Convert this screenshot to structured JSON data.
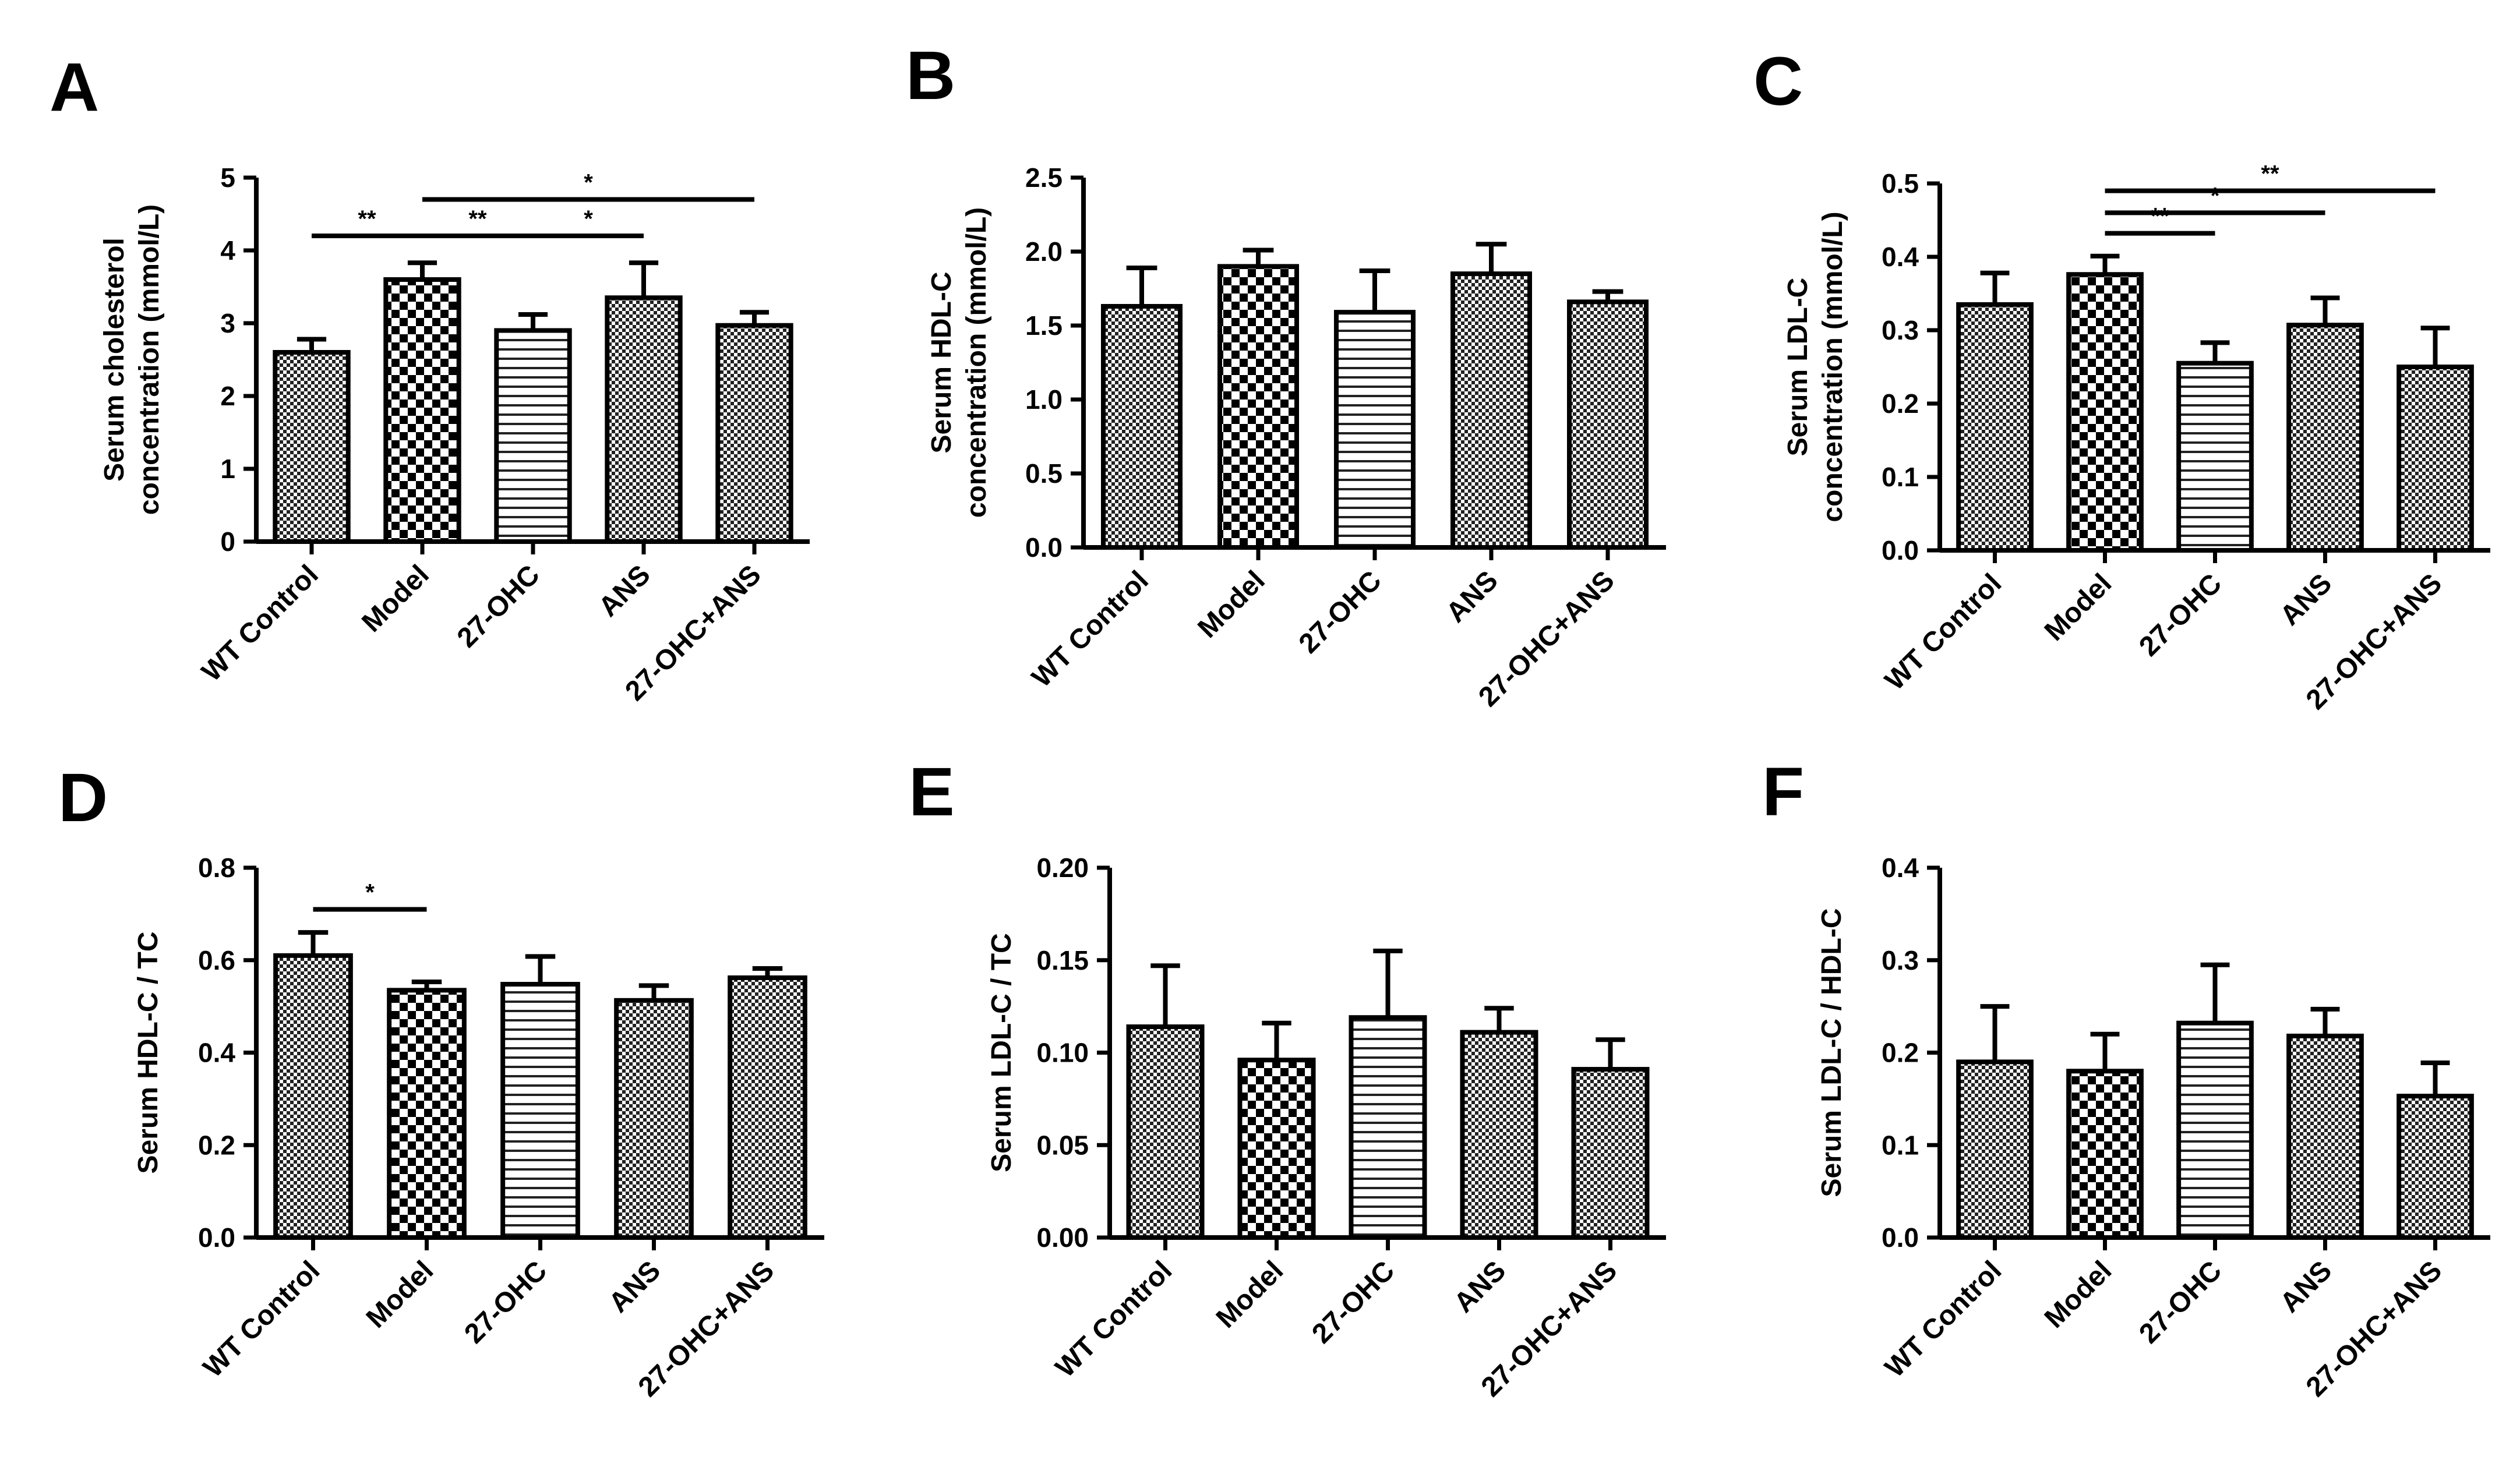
{
  "figure": {
    "background": "#ffffff",
    "ink": "#000000"
  },
  "chart_data": [
    {
      "panel": "A",
      "type": "bar",
      "ylabel": [
        "Serum cholesterol",
        "concentration (mmol/L)"
      ],
      "categories": [
        "WT Control",
        "Model",
        "27-OHC",
        "ANS",
        "27-OHC+ANS"
      ],
      "patterns": [
        "dense",
        "checker",
        "hlines",
        "dense",
        "dense"
      ],
      "values": [
        2.6,
        3.6,
        2.9,
        3.35,
        2.97
      ],
      "errors": [
        0.18,
        0.23,
        0.22,
        0.48,
        0.18
      ],
      "ylim": [
        0,
        5
      ],
      "yticks": [
        0,
        1,
        2,
        3,
        4,
        5
      ],
      "tick_labels": [
        "0",
        "1",
        "2",
        "3",
        "4",
        "5"
      ],
      "significance": [
        {
          "from": 0,
          "to": 1,
          "label": "**",
          "y": 4.2
        },
        {
          "from": 1,
          "to": 2,
          "label": "**",
          "y": 4.2
        },
        {
          "from": 2,
          "to": 3,
          "label": "*",
          "y": 4.2
        },
        {
          "from": 1,
          "to": 4,
          "label": "*",
          "y": 4.7
        }
      ]
    },
    {
      "panel": "B",
      "type": "bar",
      "ylabel": [
        "Serum HDL-C",
        "concentration (mmol/L)"
      ],
      "categories": [
        "WT Control",
        "Model",
        "27-OHC",
        "ANS",
        "27-OHC+ANS"
      ],
      "patterns": [
        "dense",
        "checker",
        "hlines",
        "dense",
        "dense"
      ],
      "values": [
        1.63,
        1.9,
        1.59,
        1.85,
        1.66
      ],
      "errors": [
        0.26,
        0.11,
        0.28,
        0.2,
        0.07
      ],
      "ylim": [
        0,
        2.5
      ],
      "yticks": [
        0,
        0.5,
        1.0,
        1.5,
        2.0,
        2.5
      ],
      "tick_labels": [
        "0.0",
        "0.5",
        "1.0",
        "1.5",
        "2.0",
        "2.5"
      ],
      "significance": []
    },
    {
      "panel": "C",
      "type": "bar",
      "ylabel": [
        "Serum LDL-C",
        "concentration (mmol/L)"
      ],
      "categories": [
        "WT Control",
        "Model",
        "27-OHC",
        "ANS",
        "27-OHC+ANS"
      ],
      "patterns": [
        "dense",
        "checker",
        "hlines",
        "dense",
        "dense"
      ],
      "values": [
        0.335,
        0.376,
        0.255,
        0.307,
        0.25
      ],
      "errors": [
        0.043,
        0.025,
        0.028,
        0.037,
        0.053
      ],
      "ylim": [
        0,
        0.5
      ],
      "yticks": [
        0,
        0.1,
        0.2,
        0.3,
        0.4,
        0.5
      ],
      "tick_labels": [
        "0.0",
        "0.1",
        "0.2",
        "0.3",
        "0.4",
        "0.5"
      ],
      "significance": [
        {
          "from": 1,
          "to": 2,
          "label": "**",
          "y": 0.432
        },
        {
          "from": 1,
          "to": 3,
          "label": "*",
          "y": 0.46
        },
        {
          "from": 1,
          "to": 4,
          "label": "**",
          "y": 0.49
        }
      ]
    },
    {
      "panel": "D",
      "type": "bar",
      "ylabel": [
        "Serum HDL-C / TC"
      ],
      "categories": [
        "WT Control",
        "Model",
        "27-OHC",
        "ANS",
        "27-OHC+ANS"
      ],
      "patterns": [
        "dense",
        "checker",
        "hlines",
        "dense",
        "dense"
      ],
      "values": [
        0.61,
        0.535,
        0.548,
        0.513,
        0.562
      ],
      "errors": [
        0.05,
        0.018,
        0.06,
        0.032,
        0.02
      ],
      "ylim": [
        0,
        0.8
      ],
      "yticks": [
        0,
        0.2,
        0.4,
        0.6,
        0.8
      ],
      "tick_labels": [
        "0.0",
        "0.2",
        "0.4",
        "0.6",
        "0.8"
      ],
      "significance": [
        {
          "from": 0,
          "to": 1,
          "label": "*",
          "y": 0.71
        }
      ]
    },
    {
      "panel": "E",
      "type": "bar",
      "ylabel": [
        "Serum LDL-C / TC"
      ],
      "categories": [
        "WT Control",
        "Model",
        "27-OHC",
        "ANS",
        "27-OHC+ANS"
      ],
      "patterns": [
        "dense",
        "checker",
        "hlines",
        "dense",
        "dense"
      ],
      "values": [
        0.114,
        0.096,
        0.119,
        0.111,
        0.091
      ],
      "errors": [
        0.033,
        0.02,
        0.036,
        0.013,
        0.016
      ],
      "ylim": [
        0,
        0.2
      ],
      "yticks": [
        0,
        0.05,
        0.1,
        0.15,
        0.2
      ],
      "tick_labels": [
        "0.00",
        "0.05",
        "0.10",
        "0.15",
        "0.20"
      ],
      "significance": []
    },
    {
      "panel": "F",
      "type": "bar",
      "ylabel": [
        "Serum LDL-C / HDL-C"
      ],
      "categories": [
        "WT Control",
        "Model",
        "27-OHC",
        "ANS",
        "27-OHC+ANS"
      ],
      "patterns": [
        "dense",
        "checker",
        "hlines",
        "dense",
        "dense"
      ],
      "values": [
        0.19,
        0.18,
        0.232,
        0.218,
        0.153
      ],
      "errors": [
        0.06,
        0.04,
        0.063,
        0.029,
        0.036
      ],
      "ylim": [
        0,
        0.4
      ],
      "yticks": [
        0,
        0.1,
        0.2,
        0.3,
        0.4
      ],
      "tick_labels": [
        "0.0",
        "0.1",
        "0.2",
        "0.3",
        "0.4"
      ],
      "significance": []
    }
  ]
}
